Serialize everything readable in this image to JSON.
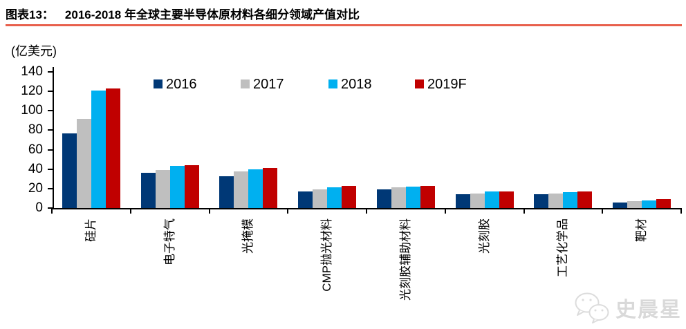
{
  "header": {
    "tag": "图表13：",
    "title": "2016-2018 年全球主要半导体原材料各细分领域产值对比",
    "underline_color": "#e8604c"
  },
  "chart_data": {
    "type": "bar",
    "title": "2016-2018 年全球主要半导体原材料各细分领域产值对比",
    "unit_label": "(亿美元)",
    "xlabel": "",
    "ylabel": "(亿美元)",
    "categories": [
      "硅片",
      "电子特气",
      "光掩模",
      "CMP抛光材料",
      "光刻胶辅助材料",
      "光刻胶",
      "工艺化学品",
      "靶材"
    ],
    "series": [
      {
        "name": "2016",
        "color": "#003876",
        "values": [
          77,
          36,
          33,
          17,
          19,
          14,
          14,
          6
        ]
      },
      {
        "name": "2017",
        "color": "#bfbfbf",
        "values": [
          92,
          39,
          38,
          19,
          21,
          15,
          15,
          7
        ]
      },
      {
        "name": "2018",
        "color": "#00b0f0",
        "values": [
          121,
          43,
          40,
          21,
          22,
          17,
          16,
          8
        ]
      },
      {
        "name": "2019F",
        "color": "#c00000",
        "values": [
          123,
          44,
          41,
          23,
          23,
          17,
          17,
          9
        ]
      }
    ],
    "ylim": [
      0,
      140
    ],
    "yticks": [
      0,
      20,
      40,
      60,
      80,
      100,
      120,
      140
    ],
    "grid": false,
    "legend_position": "top"
  },
  "watermark": {
    "text": "史晨星",
    "icon": "wechat-icon",
    "color": "#d9d9d9"
  }
}
